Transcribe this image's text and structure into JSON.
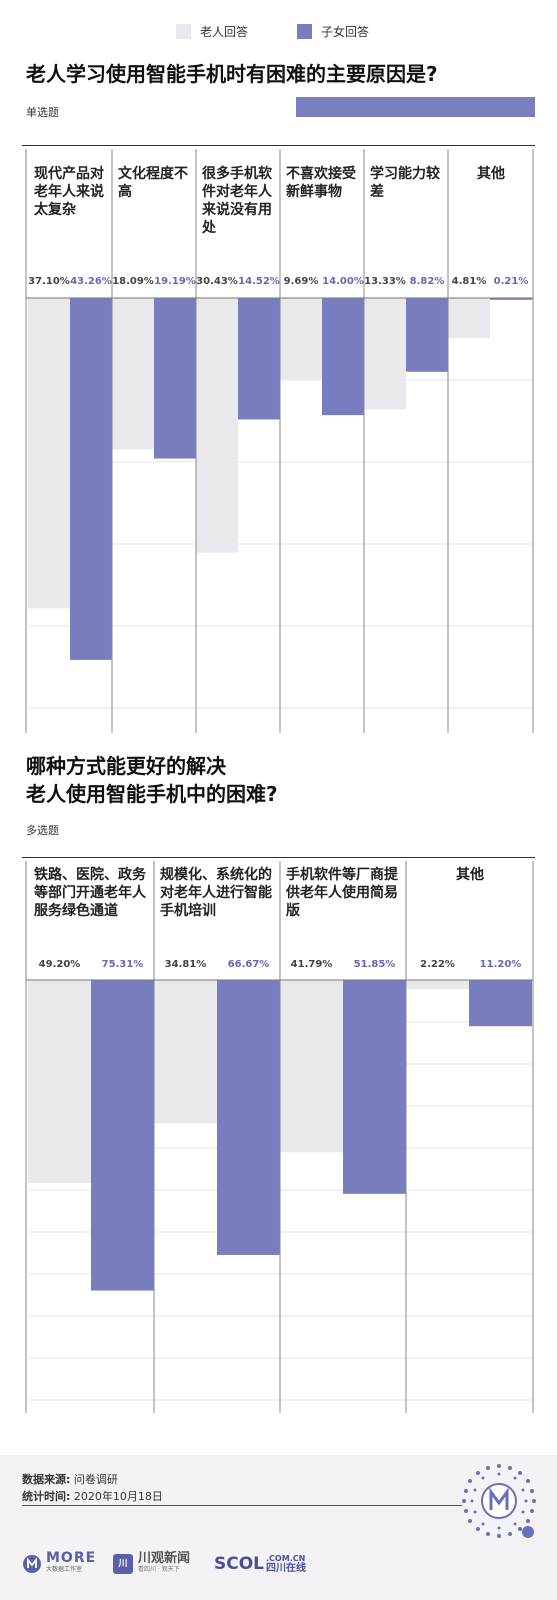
{
  "legend": {
    "elder": {
      "label": "老人回答",
      "color": "#e9e8ec"
    },
    "child": {
      "label": "子女回答",
      "color": "#777dbe"
    }
  },
  "q1": {
    "title": "老人学习使用智能手机时有困难的主要原因是?",
    "tag": "单选题"
  },
  "q2": {
    "title_line1": "哪种方式能更好的解决",
    "title_line2": "老人使用智能手机中的困难?",
    "tag": "多选题"
  },
  "footer": {
    "source_label": "数据来源:",
    "source_value": "问卷调研",
    "time_label": "统计时间:",
    "time_value": "2020年10月18日",
    "logo_more": "MORE",
    "logo_more_sub": "大数据工作室",
    "logo_cg": "川观新闻",
    "logo_cg_sub": "看四川 · 观天下",
    "logo_scol": "SCOL",
    "logo_scol_domain": ".COM.CN",
    "logo_scol_cn": "四川在线",
    "qr_icon": "qr-code-icon"
  },
  "chart_data": [
    {
      "type": "bar",
      "title": "老人学习使用智能手机时有困难的主要原因是?",
      "categories": [
        "现代产品对老年人来说太复杂",
        "文化程度不高",
        "很多手机软件对老年人来说没有用处",
        "不喜欢接受新鲜事物",
        "学习能力较差",
        "其他"
      ],
      "series": [
        {
          "name": "老人回答",
          "values": [
            37.1,
            18.09,
            30.43,
            9.69,
            13.33,
            4.81
          ],
          "labels": [
            "37.10%",
            "18.09%",
            "30.43%",
            "9.69%",
            "13.33%",
            "4.81%"
          ]
        },
        {
          "name": "子女回答",
          "values": [
            43.26,
            19.19,
            14.52,
            14.0,
            8.82,
            0.21
          ],
          "labels": [
            "43.26%",
            "19.19%",
            "14.52%",
            "14.00%",
            "8.82%",
            "0.21%"
          ]
        }
      ],
      "ylim": [
        0,
        52
      ],
      "grid": true
    },
    {
      "type": "bar",
      "title": "哪种方式能更好的解决老人使用智能手机中的困难?",
      "categories": [
        "铁路、医院、政务等部门开通老年人服务绿色通道",
        "规模化、系统化的对老年人进行智能手机培训",
        "手机软件等厂商提供老年人使用简易版",
        "其他"
      ],
      "series": [
        {
          "name": "老人回答",
          "values": [
            49.2,
            34.81,
            41.79,
            2.22
          ],
          "labels": [
            "49.20%",
            "34.81%",
            "41.79%",
            "2.22%"
          ]
        },
        {
          "name": "子女回答",
          "values": [
            75.31,
            66.67,
            51.85,
            11.2
          ],
          "labels": [
            "75.31%",
            "66.67%",
            "51.85%",
            "11.20%"
          ]
        }
      ],
      "ylim": [
        0,
        105
      ],
      "grid": true
    }
  ]
}
